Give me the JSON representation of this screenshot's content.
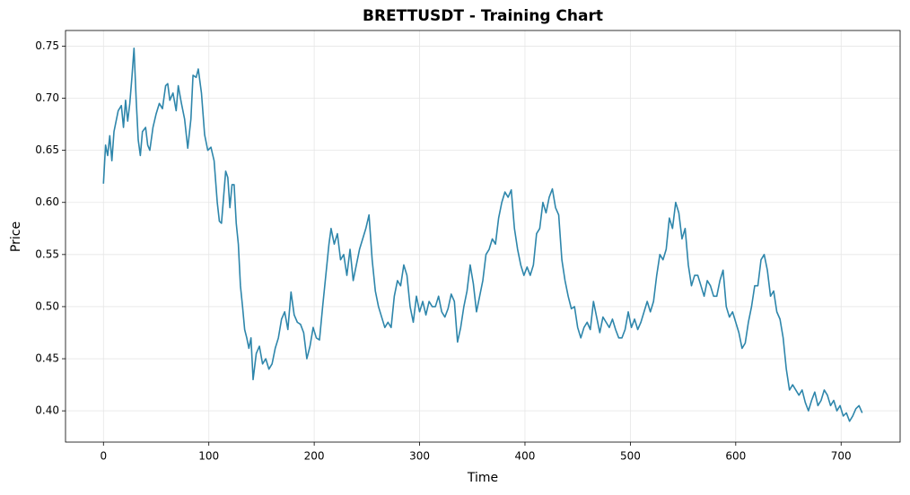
{
  "chart_data": {
    "type": "line",
    "title": "BRETTUSDT - Training Chart",
    "x_label": "Time",
    "y_label": "Price",
    "xlim": [
      -36,
      756
    ],
    "ylim": [
      0.37,
      0.765
    ],
    "xticks": [
      0,
      100,
      200,
      300,
      400,
      500,
      600,
      700
    ],
    "yticks": [
      {
        "value": 0.4,
        "label": "0.40"
      },
      {
        "value": 0.45,
        "label": "0.45"
      },
      {
        "value": 0.5,
        "label": "0.50"
      },
      {
        "value": 0.55,
        "label": "0.55"
      },
      {
        "value": 0.6,
        "label": "0.60"
      },
      {
        "value": 0.65,
        "label": "0.65"
      },
      {
        "value": 0.7,
        "label": "0.70"
      },
      {
        "value": 0.75,
        "label": "0.75"
      }
    ],
    "grid": true,
    "series": [
      {
        "color": "#2e86ab",
        "x": [
          0,
          2,
          4,
          6,
          8,
          10,
          14,
          17,
          19,
          21,
          23,
          25,
          27,
          29,
          31,
          33,
          35,
          37,
          40,
          42,
          44,
          47,
          50,
          53,
          56,
          59,
          61,
          63,
          66,
          69,
          71,
          74,
          77,
          80,
          83,
          85,
          88,
          90,
          93,
          96,
          99,
          102,
          105,
          108,
          110,
          112,
          114,
          116,
          118,
          120,
          122,
          124,
          126,
          128,
          130,
          132,
          134,
          136,
          138,
          140,
          142,
          145,
          148,
          151,
          154,
          157,
          160,
          163,
          166,
          169,
          172,
          175,
          178,
          181,
          184,
          187,
          190,
          193,
          196,
          199,
          202,
          205,
          208,
          211,
          214,
          216,
          219,
          222,
          225,
          228,
          231,
          234,
          237,
          240,
          243,
          246,
          249,
          252,
          255,
          258,
          261,
          264,
          267,
          270,
          273,
          276,
          279,
          282,
          285,
          288,
          291,
          294,
          297,
          300,
          303,
          306,
          309,
          312,
          315,
          318,
          321,
          324,
          327,
          330,
          333,
          336,
          339,
          342,
          345,
          348,
          351,
          354,
          357,
          360,
          363,
          366,
          369,
          372,
          375,
          378,
          381,
          384,
          387,
          390,
          393,
          396,
          399,
          402,
          405,
          408,
          411,
          414,
          417,
          420,
          423,
          426,
          429,
          432,
          435,
          438,
          441,
          444,
          447,
          450,
          453,
          456,
          459,
          462,
          465,
          468,
          471,
          474,
          477,
          480,
          483,
          486,
          489,
          492,
          495,
          498,
          501,
          504,
          507,
          510,
          513,
          516,
          519,
          522,
          525,
          528,
          531,
          534,
          537,
          540,
          543,
          546,
          549,
          552,
          555,
          558,
          561,
          564,
          567,
          570,
          573,
          576,
          579,
          582,
          585,
          588,
          591,
          594,
          597,
          600,
          603,
          606,
          609,
          612,
          615,
          618,
          621,
          624,
          627,
          630,
          633,
          636,
          639,
          642,
          645,
          648,
          651,
          654,
          657,
          660,
          663,
          666,
          669,
          672,
          675,
          678,
          681,
          684,
          687,
          690,
          693,
          696,
          699,
          702,
          705,
          708,
          711,
          714,
          717,
          720
        ],
        "values": [
          0.618,
          0.655,
          0.645,
          0.664,
          0.64,
          0.668,
          0.688,
          0.693,
          0.672,
          0.698,
          0.678,
          0.695,
          0.72,
          0.748,
          0.7,
          0.66,
          0.645,
          0.668,
          0.672,
          0.655,
          0.65,
          0.672,
          0.685,
          0.695,
          0.69,
          0.712,
          0.714,
          0.698,
          0.705,
          0.688,
          0.712,
          0.695,
          0.68,
          0.652,
          0.68,
          0.722,
          0.72,
          0.728,
          0.705,
          0.665,
          0.65,
          0.653,
          0.64,
          0.6,
          0.582,
          0.58,
          0.605,
          0.63,
          0.624,
          0.595,
          0.617,
          0.617,
          0.58,
          0.56,
          0.52,
          0.5,
          0.478,
          0.47,
          0.46,
          0.47,
          0.43,
          0.455,
          0.462,
          0.445,
          0.45,
          0.44,
          0.445,
          0.46,
          0.47,
          0.488,
          0.495,
          0.478,
          0.514,
          0.492,
          0.485,
          0.483,
          0.475,
          0.45,
          0.462,
          0.48,
          0.47,
          0.468,
          0.5,
          0.53,
          0.56,
          0.575,
          0.56,
          0.57,
          0.545,
          0.55,
          0.53,
          0.555,
          0.525,
          0.54,
          0.555,
          0.565,
          0.575,
          0.588,
          0.545,
          0.515,
          0.5,
          0.49,
          0.48,
          0.485,
          0.48,
          0.51,
          0.525,
          0.52,
          0.54,
          0.53,
          0.5,
          0.485,
          0.51,
          0.495,
          0.505,
          0.492,
          0.505,
          0.5,
          0.5,
          0.51,
          0.495,
          0.49,
          0.498,
          0.512,
          0.505,
          0.466,
          0.48,
          0.5,
          0.515,
          0.54,
          0.522,
          0.495,
          0.51,
          0.525,
          0.55,
          0.555,
          0.565,
          0.56,
          0.585,
          0.6,
          0.61,
          0.605,
          0.612,
          0.575,
          0.555,
          0.54,
          0.53,
          0.538,
          0.53,
          0.54,
          0.57,
          0.575,
          0.6,
          0.59,
          0.605,
          0.613,
          0.595,
          0.588,
          0.545,
          0.525,
          0.51,
          0.498,
          0.5,
          0.48,
          0.47,
          0.48,
          0.485,
          0.478,
          0.505,
          0.49,
          0.475,
          0.49,
          0.485,
          0.48,
          0.488,
          0.478,
          0.47,
          0.47,
          0.478,
          0.495,
          0.48,
          0.488,
          0.478,
          0.485,
          0.495,
          0.505,
          0.495,
          0.505,
          0.53,
          0.55,
          0.545,
          0.555,
          0.585,
          0.575,
          0.6,
          0.59,
          0.565,
          0.575,
          0.54,
          0.52,
          0.53,
          0.53,
          0.52,
          0.51,
          0.525,
          0.52,
          0.51,
          0.51,
          0.525,
          0.535,
          0.5,
          0.49,
          0.495,
          0.485,
          0.475,
          0.46,
          0.465,
          0.485,
          0.5,
          0.52,
          0.52,
          0.545,
          0.55,
          0.535,
          0.51,
          0.515,
          0.495,
          0.488,
          0.47,
          0.44,
          0.42,
          0.425,
          0.42,
          0.415,
          0.42,
          0.408,
          0.4,
          0.41,
          0.418,
          0.405,
          0.41,
          0.42,
          0.415,
          0.405,
          0.41,
          0.4,
          0.405,
          0.395,
          0.398,
          0.39,
          0.395,
          0.402,
          0.405,
          0.398
        ]
      }
    ]
  }
}
